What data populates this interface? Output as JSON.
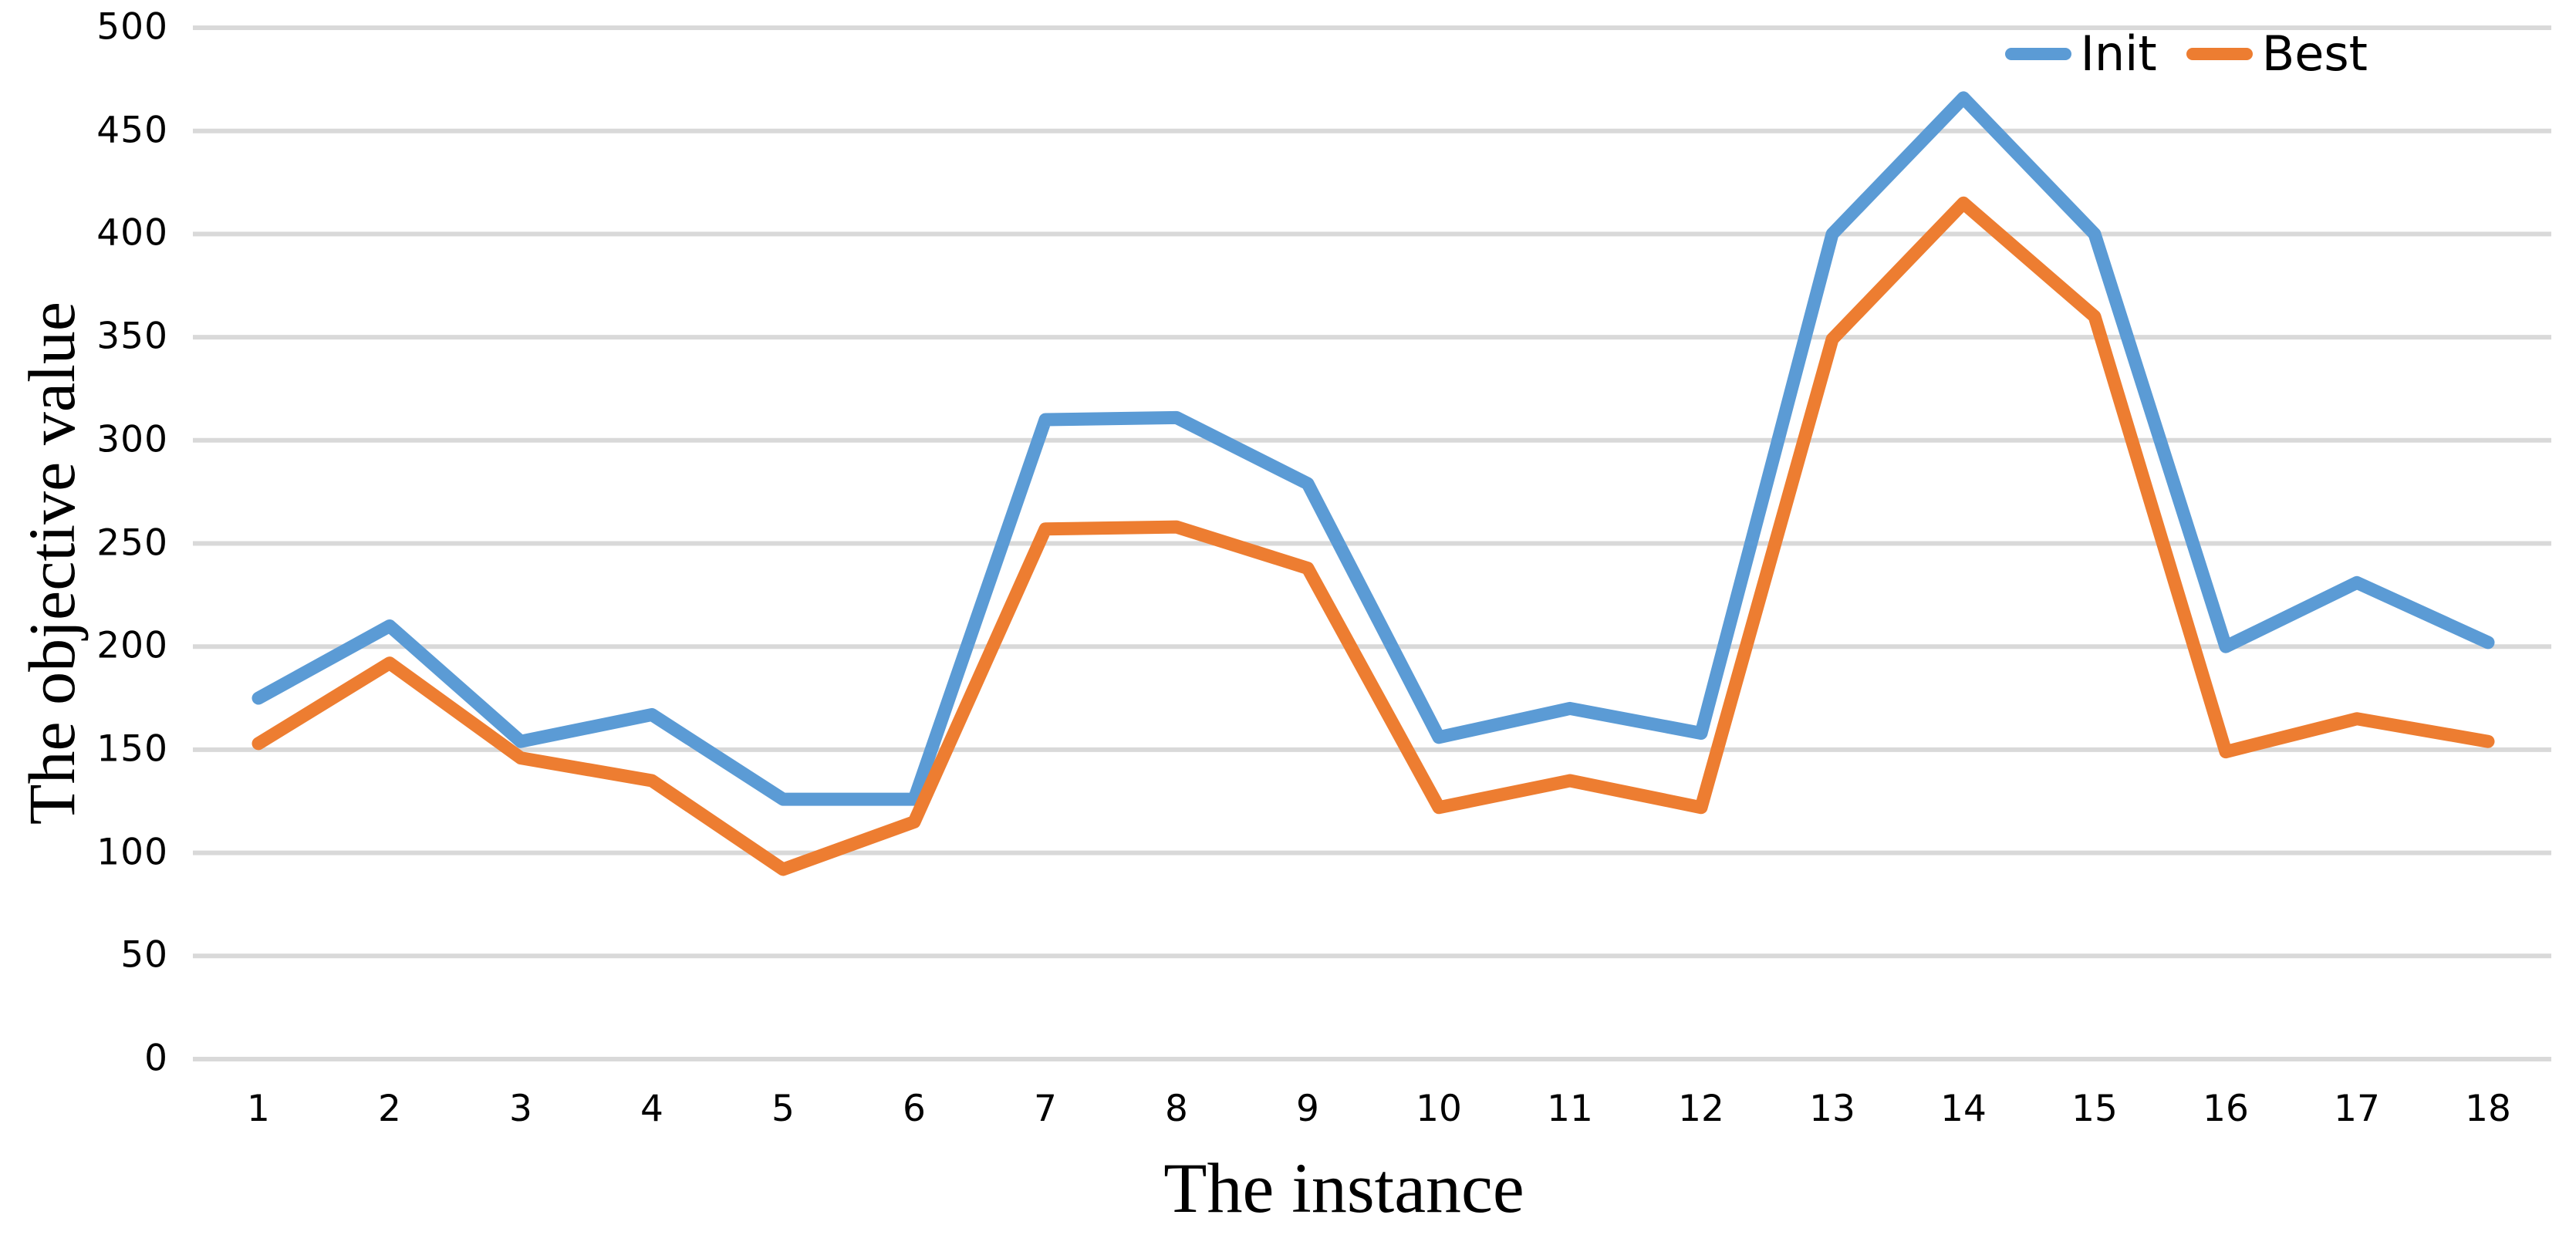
{
  "chart_data": {
    "type": "line",
    "title": "",
    "xlabel": "The instance",
    "ylabel": "The objective value",
    "x": [
      1,
      2,
      3,
      4,
      5,
      6,
      7,
      8,
      9,
      10,
      11,
      12,
      13,
      14,
      15,
      16,
      17,
      18
    ],
    "series": [
      {
        "name": "Init",
        "color": "#5B9BD5",
        "values": [
          175,
          210,
          154,
          167,
          126,
          126,
          310,
          311,
          279,
          156,
          170,
          158,
          400,
          466,
          400,
          200,
          231,
          202
        ]
      },
      {
        "name": "Best",
        "color": "#ED7D31",
        "values": [
          153,
          192,
          146,
          135,
          92,
          115,
          257,
          258,
          238,
          122,
          135,
          122,
          349,
          415,
          360,
          149,
          165,
          154
        ]
      }
    ],
    "ylim": [
      0,
      500
    ],
    "yticks": [
      0,
      50,
      100,
      150,
      200,
      250,
      300,
      350,
      400,
      450,
      500
    ],
    "grid": "horizontal",
    "gridline_color": "#D9D9D9",
    "background_color": "#FFFFFF",
    "text_color": "#000000",
    "legend_position": "top-right"
  }
}
